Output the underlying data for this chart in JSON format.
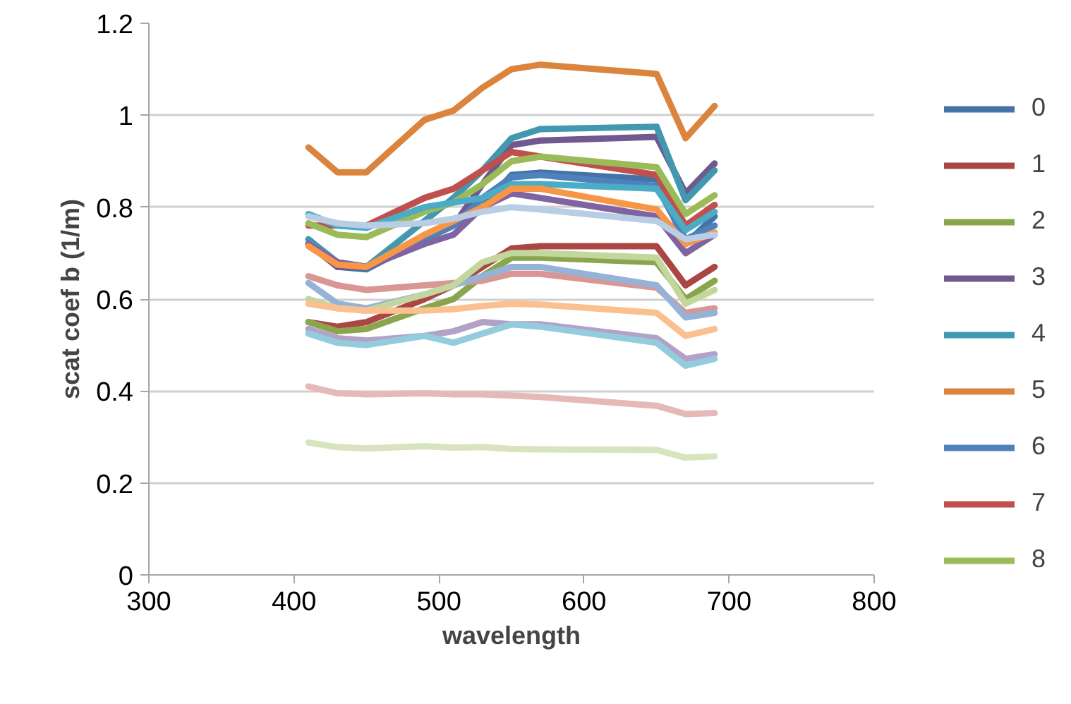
{
  "chart_data": {
    "type": "line",
    "xlabel": "wavelength",
    "ylabel": "scat coef b (1/m)",
    "x": [
      410,
      430,
      450,
      490,
      510,
      530,
      550,
      570,
      650,
      670,
      690
    ],
    "xlim": [
      300,
      800
    ],
    "xticks": [
      300,
      400,
      500,
      600,
      700,
      800
    ],
    "ylim": [
      0,
      1.2
    ],
    "yticks": [
      0,
      0.2,
      0.4,
      0.6,
      0.8,
      1,
      1.2
    ],
    "grid": "y",
    "legend": "right",
    "marker": "none",
    "line_style": "solid",
    "series": [
      {
        "name": "0",
        "color": "#4572a7",
        "values": [
          0.73,
          0.67,
          0.665,
          0.73,
          0.76,
          0.8,
          0.87,
          0.875,
          0.86,
          0.72,
          0.78
        ]
      },
      {
        "name": "1",
        "color": "#aa4643",
        "values": [
          0.55,
          0.54,
          0.55,
          0.6,
          0.63,
          0.67,
          0.71,
          0.715,
          0.715,
          0.63,
          0.67
        ]
      },
      {
        "name": "2",
        "color": "#89a54e",
        "values": [
          0.55,
          0.53,
          0.535,
          0.58,
          0.6,
          0.65,
          0.69,
          0.69,
          0.68,
          0.6,
          0.64
        ]
      },
      {
        "name": "3",
        "color": "#71588f",
        "values": [
          0.72,
          0.67,
          0.67,
          0.73,
          0.76,
          0.85,
          0.935,
          0.945,
          0.953,
          0.83,
          0.895
        ]
      },
      {
        "name": "4",
        "color": "#4198af",
        "values": [
          0.73,
          0.68,
          0.67,
          0.77,
          0.82,
          0.88,
          0.95,
          0.97,
          0.975,
          0.815,
          0.88
        ]
      },
      {
        "name": "5",
        "color": "#db843d",
        "values": [
          0.93,
          0.876,
          0.876,
          0.99,
          1.01,
          1.06,
          1.1,
          1.11,
          1.09,
          0.95,
          1.02
        ]
      },
      {
        "name": "6",
        "color": "#4f81bd",
        "values": [
          0.72,
          0.68,
          0.67,
          0.73,
          0.76,
          0.82,
          0.865,
          0.87,
          0.846,
          0.73,
          0.76
        ]
      },
      {
        "name": "7",
        "color": "#c0504d",
        "values": [
          0.76,
          0.76,
          0.76,
          0.82,
          0.84,
          0.88,
          0.92,
          0.91,
          0.87,
          0.76,
          0.805
        ]
      },
      {
        "name": "8",
        "color": "#9bbb59",
        "values": [
          0.765,
          0.74,
          0.735,
          0.79,
          0.81,
          0.85,
          0.9,
          0.91,
          0.887,
          0.785,
          0.826
        ]
      },
      {
        "color": "#8064a2",
        "values": [
          0.72,
          0.68,
          0.67,
          0.72,
          0.74,
          0.8,
          0.83,
          0.82,
          0.78,
          0.7,
          0.74
        ]
      },
      {
        "color": "#4bacc6",
        "values": [
          0.785,
          0.76,
          0.755,
          0.8,
          0.81,
          0.82,
          0.85,
          0.85,
          0.84,
          0.75,
          0.79
        ]
      },
      {
        "color": "#f79646",
        "values": [
          0.715,
          0.675,
          0.67,
          0.74,
          0.77,
          0.8,
          0.84,
          0.84,
          0.795,
          0.72,
          0.745
        ]
      },
      {
        "color": "#b9cde5",
        "values": [
          0.78,
          0.765,
          0.76,
          0.765,
          0.775,
          0.79,
          0.8,
          0.795,
          0.77,
          0.73,
          0.74
        ]
      },
      {
        "color": "#d99694",
        "values": [
          0.65,
          0.63,
          0.62,
          0.63,
          0.635,
          0.64,
          0.655,
          0.655,
          0.625,
          0.57,
          0.58
        ]
      },
      {
        "color": "#95b3d7",
        "values": [
          0.635,
          0.59,
          0.58,
          0.61,
          0.63,
          0.65,
          0.67,
          0.67,
          0.63,
          0.56,
          0.57
        ]
      },
      {
        "color": "#c3d69b",
        "values": [
          0.6,
          0.58,
          0.575,
          0.61,
          0.63,
          0.68,
          0.7,
          0.7,
          0.69,
          0.59,
          0.62
        ]
      },
      {
        "color": "#fac090",
        "values": [
          0.59,
          0.58,
          0.575,
          0.575,
          0.578,
          0.585,
          0.59,
          0.588,
          0.57,
          0.52,
          0.535
        ]
      },
      {
        "color": "#b3a2c7",
        "values": [
          0.535,
          0.515,
          0.51,
          0.52,
          0.53,
          0.55,
          0.545,
          0.545,
          0.515,
          0.47,
          0.48
        ]
      },
      {
        "color": "#93cddd",
        "values": [
          0.525,
          0.505,
          0.5,
          0.52,
          0.505,
          0.525,
          0.545,
          0.54,
          0.505,
          0.455,
          0.47
        ]
      },
      {
        "color": "#e6b9b8",
        "values": [
          0.41,
          0.395,
          0.393,
          0.395,
          0.393,
          0.393,
          0.39,
          0.387,
          0.368,
          0.35,
          0.352
        ]
      },
      {
        "color": "#d7e4bd",
        "values": [
          0.288,
          0.278,
          0.275,
          0.28,
          0.277,
          0.278,
          0.274,
          0.273,
          0.272,
          0.255,
          0.258
        ]
      }
    ]
  }
}
